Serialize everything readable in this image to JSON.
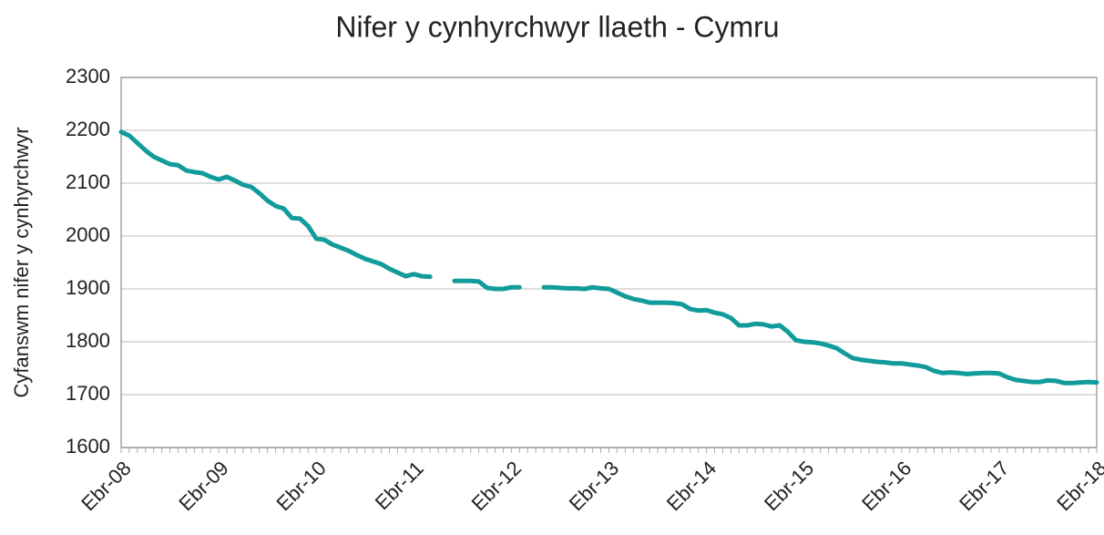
{
  "chart_data": {
    "type": "line",
    "title": "Nifer y cynhyrchwyr llaeth - Cymru",
    "y_label": "Cyfanswm nifer y cynhyrchwyr",
    "categories": [
      "Ebr-08",
      null,
      null,
      null,
      null,
      null,
      null,
      null,
      null,
      null,
      null,
      null,
      "Ebr-09",
      null,
      null,
      null,
      null,
      null,
      null,
      null,
      null,
      null,
      null,
      null,
      "Ebr-10",
      null,
      null,
      null,
      null,
      null,
      null,
      null,
      null,
      null,
      null,
      null,
      "Ebr-11",
      null,
      null,
      null,
      null,
      null,
      null,
      null,
      null,
      null,
      null,
      null,
      "Ebr-12",
      null,
      null,
      null,
      null,
      null,
      null,
      null,
      null,
      null,
      null,
      null,
      "Ebr-13",
      null,
      null,
      null,
      null,
      null,
      null,
      null,
      null,
      null,
      null,
      null,
      "Ebr-14",
      null,
      null,
      null,
      null,
      null,
      null,
      null,
      null,
      null,
      null,
      null,
      "Ebr-15",
      null,
      null,
      null,
      null,
      null,
      null,
      null,
      null,
      null,
      null,
      null,
      "Ebr-16",
      null,
      null,
      null,
      null,
      null,
      null,
      null,
      null,
      null,
      null,
      null,
      "Ebr-17",
      null,
      null,
      null,
      null,
      null,
      null,
      null,
      null,
      null,
      null,
      null,
      "Ebr-18"
    ],
    "series": [
      {
        "name": "Cymru",
        "color": "#129b9b",
        "values": [
          2197,
          2190,
          2176,
          2162,
          2150,
          2143,
          2136,
          2134,
          2124,
          2121,
          2119,
          2112,
          2107,
          2112,
          2105,
          2097,
          2093,
          2081,
          2067,
          2057,
          2052,
          2034,
          2033,
          2019,
          1995,
          1993,
          1984,
          1978,
          1972,
          1964,
          1957,
          1952,
          1947,
          1938,
          1931,
          1924,
          1928,
          1924,
          1923,
          null,
          null,
          1915,
          1915,
          1915,
          1914,
          1902,
          1900,
          1900,
          1903,
          1903,
          null,
          null,
          1903,
          1903,
          1902,
          1901,
          1901,
          1900,
          1903,
          1901,
          1900,
          1893,
          1886,
          1881,
          1878,
          1874,
          1874,
          1874,
          1873,
          1871,
          1862,
          1859,
          1860,
          1855,
          1852,
          1845,
          1831,
          1831,
          1834,
          1833,
          1829,
          1831,
          1819,
          1803,
          1800,
          1799,
          1797,
          1793,
          1788,
          1778,
          1769,
          1766,
          1764,
          1762,
          1761,
          1759,
          1759,
          1757,
          1755,
          1752,
          1745,
          1741,
          1742,
          1741,
          1739,
          1740,
          1741,
          1741,
          1740,
          1733,
          1728,
          1726,
          1724,
          1724,
          1727,
          1726,
          1722,
          1722,
          1723,
          1724,
          1723
        ]
      }
    ],
    "ylim": [
      1600,
      2300
    ],
    "yticks": [
      1600,
      1700,
      1800,
      1900,
      2000,
      2100,
      2200,
      2300
    ],
    "grid": true
  }
}
